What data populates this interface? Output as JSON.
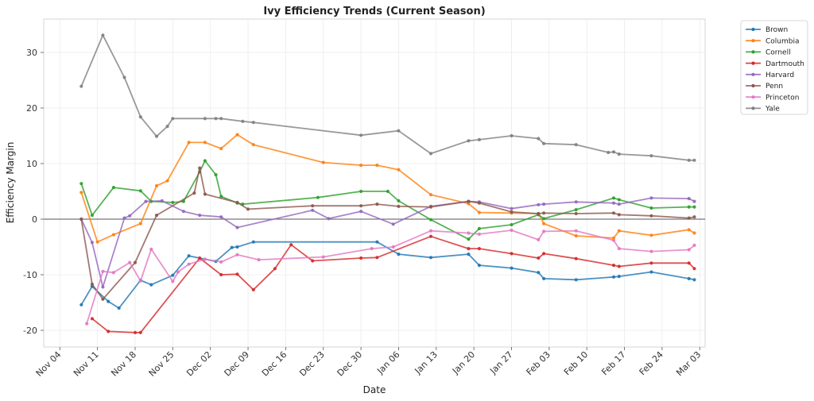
{
  "chart_data": {
    "type": "line",
    "title": "Ivy Efficiency Trends (Current Season)",
    "xlabel": "Date",
    "ylabel": "Efficiency Margin",
    "x_ticks": [
      "Nov 04",
      "Nov 11",
      "Nov 18",
      "Nov 25",
      "Dec 02",
      "Dec 09",
      "Dec 16",
      "Dec 23",
      "Dec 30",
      "Jan 06",
      "Jan 13",
      "Jan 20",
      "Jan 27",
      "Feb 03",
      "Feb 10",
      "Feb 17",
      "Feb 24",
      "Mar 03"
    ],
    "x_range": [
      "2024-11-01",
      "2025-03-04"
    ],
    "y_ticks": [
      -20,
      -10,
      0,
      10,
      20,
      30
    ],
    "ylim": [
      -23,
      36
    ],
    "grid": true,
    "zero_line": true,
    "legend_position": "outside top-right",
    "series": [
      {
        "name": "Brown",
        "color": "#1f77b4",
        "points": [
          [
            "2024-11-08",
            -15.4
          ],
          [
            "2024-11-10",
            -12.1
          ],
          [
            "2024-11-13",
            -14.8
          ],
          [
            "2024-11-15",
            -16.0
          ],
          [
            "2024-11-19",
            -11.0
          ],
          [
            "2024-11-21",
            -11.8
          ],
          [
            "2024-11-25",
            -10.1
          ],
          [
            "2024-11-28",
            -6.6
          ],
          [
            "2024-12-03",
            -7.6
          ],
          [
            "2024-12-06",
            -5.1
          ],
          [
            "2024-12-07",
            -5.0
          ],
          [
            "2024-12-10",
            -4.1
          ],
          [
            "2025-01-02",
            -4.1
          ],
          [
            "2025-01-06",
            -6.3
          ],
          [
            "2025-01-12",
            -6.9
          ],
          [
            "2025-01-19",
            -6.3
          ],
          [
            "2025-01-21",
            -8.3
          ],
          [
            "2025-01-27",
            -8.8
          ],
          [
            "2025-02-01",
            -9.6
          ],
          [
            "2025-02-02",
            -10.7
          ],
          [
            "2025-02-08",
            -10.9
          ],
          [
            "2025-02-15",
            -10.4
          ],
          [
            "2025-02-16",
            -10.3
          ],
          [
            "2025-02-22",
            -9.5
          ],
          [
            "2025-03-01",
            -10.7
          ],
          [
            "2025-03-02",
            -10.9
          ]
        ]
      },
      {
        "name": "Columbia",
        "color": "#ff7f0e",
        "points": [
          [
            "2024-11-08",
            4.8
          ],
          [
            "2024-11-11",
            -4.1
          ],
          [
            "2024-11-14",
            -2.8
          ],
          [
            "2024-11-19",
            -0.8
          ],
          [
            "2024-11-22",
            6.0
          ],
          [
            "2024-11-24",
            6.9
          ],
          [
            "2024-11-28",
            13.8
          ],
          [
            "2024-12-01",
            13.8
          ],
          [
            "2024-12-04",
            12.7
          ],
          [
            "2024-12-07",
            15.2
          ],
          [
            "2024-12-10",
            13.4
          ],
          [
            "2024-12-23",
            10.2
          ],
          [
            "2024-12-30",
            9.7
          ],
          [
            "2025-01-02",
            9.7
          ],
          [
            "2025-01-06",
            8.9
          ],
          [
            "2025-01-12",
            4.4
          ],
          [
            "2025-01-19",
            2.8
          ],
          [
            "2025-01-21",
            1.2
          ],
          [
            "2025-01-27",
            1.1
          ],
          [
            "2025-02-01",
            1.0
          ],
          [
            "2025-02-02",
            -0.8
          ],
          [
            "2025-02-08",
            -3.0
          ],
          [
            "2025-02-15",
            -3.4
          ],
          [
            "2025-02-16",
            -2.1
          ],
          [
            "2025-02-22",
            -2.9
          ],
          [
            "2025-03-01",
            -1.9
          ],
          [
            "2025-03-02",
            -2.5
          ]
        ]
      },
      {
        "name": "Cornell",
        "color": "#2ca02c",
        "points": [
          [
            "2024-11-08",
            6.4
          ],
          [
            "2024-11-10",
            0.7
          ],
          [
            "2024-11-14",
            5.7
          ],
          [
            "2024-11-19",
            5.1
          ],
          [
            "2024-11-21",
            3.2
          ],
          [
            "2024-11-25",
            3.0
          ],
          [
            "2024-11-27",
            3.2
          ],
          [
            "2024-11-30",
            8.5
          ],
          [
            "2024-12-01",
            10.5
          ],
          [
            "2024-12-03",
            8.0
          ],
          [
            "2024-12-04",
            4.1
          ],
          [
            "2024-12-07",
            2.9
          ],
          [
            "2024-12-08",
            2.7
          ],
          [
            "2024-12-22",
            3.9
          ],
          [
            "2024-12-30",
            5.0
          ],
          [
            "2025-01-04",
            5.0
          ],
          [
            "2025-01-06",
            3.3
          ],
          [
            "2025-01-12",
            -0.1
          ],
          [
            "2025-01-19",
            -3.6
          ],
          [
            "2025-01-21",
            -1.7
          ],
          [
            "2025-01-27",
            -1.0
          ],
          [
            "2025-02-01",
            0.8
          ],
          [
            "2025-02-02",
            0.1
          ],
          [
            "2025-02-08",
            1.7
          ],
          [
            "2025-02-15",
            3.8
          ],
          [
            "2025-02-16",
            3.5
          ],
          [
            "2025-02-22",
            2.0
          ],
          [
            "2025-03-01",
            2.2
          ],
          [
            "2025-03-02",
            2.2
          ]
        ]
      },
      {
        "name": "Dartmouth",
        "color": "#d62728",
        "points": [
          [
            "2024-11-10",
            -17.9
          ],
          [
            "2024-11-13",
            -20.2
          ],
          [
            "2024-11-18",
            -20.4
          ],
          [
            "2024-11-19",
            -20.4
          ],
          [
            "2024-11-30",
            -7.0
          ],
          [
            "2024-12-04",
            -10.0
          ],
          [
            "2024-12-07",
            -9.9
          ],
          [
            "2024-12-10",
            -12.7
          ],
          [
            "2024-12-14",
            -8.9
          ],
          [
            "2024-12-17",
            -4.6
          ],
          [
            "2024-12-21",
            -7.5
          ],
          [
            "2024-12-30",
            -7.0
          ],
          [
            "2025-01-02",
            -6.9
          ],
          [
            "2025-01-12",
            -3.1
          ],
          [
            "2025-01-19",
            -5.3
          ],
          [
            "2025-01-21",
            -5.3
          ],
          [
            "2025-01-27",
            -6.2
          ],
          [
            "2025-02-01",
            -7.0
          ],
          [
            "2025-02-02",
            -6.2
          ],
          [
            "2025-02-08",
            -7.1
          ],
          [
            "2025-02-15",
            -8.3
          ],
          [
            "2025-02-16",
            -8.5
          ],
          [
            "2025-02-22",
            -7.9
          ],
          [
            "2025-03-01",
            -7.9
          ],
          [
            "2025-03-02",
            -8.9
          ]
        ]
      },
      {
        "name": "Harvard",
        "color": "#9467bd",
        "points": [
          [
            "2024-11-08",
            0.0
          ],
          [
            "2024-11-10",
            -4.2
          ],
          [
            "2024-11-12",
            -12.2
          ],
          [
            "2024-11-16",
            0.2
          ],
          [
            "2024-11-17",
            0.6
          ],
          [
            "2024-11-20",
            3.2
          ],
          [
            "2024-11-23",
            3.3
          ],
          [
            "2024-11-27",
            1.4
          ],
          [
            "2024-11-30",
            0.7
          ],
          [
            "2024-12-04",
            0.4
          ],
          [
            "2024-12-07",
            -1.5
          ],
          [
            "2024-12-21",
            1.6
          ],
          [
            "2024-12-24",
            0.1
          ],
          [
            "2024-12-30",
            1.4
          ],
          [
            "2025-01-05",
            -0.9
          ],
          [
            "2025-01-12",
            2.3
          ],
          [
            "2025-01-19",
            3.2
          ],
          [
            "2025-01-21",
            3.1
          ],
          [
            "2025-01-27",
            1.9
          ],
          [
            "2025-02-01",
            2.6
          ],
          [
            "2025-02-02",
            2.7
          ],
          [
            "2025-02-08",
            3.1
          ],
          [
            "2025-02-15",
            2.9
          ],
          [
            "2025-02-16",
            2.7
          ],
          [
            "2025-02-22",
            3.8
          ],
          [
            "2025-03-01",
            3.7
          ],
          [
            "2025-03-02",
            3.2
          ]
        ]
      },
      {
        "name": "Penn",
        "color": "#8c564b",
        "points": [
          [
            "2024-11-08",
            0.0
          ],
          [
            "2024-11-10",
            -11.7
          ],
          [
            "2024-11-12",
            -14.4
          ],
          [
            "2024-11-18",
            -7.8
          ],
          [
            "2024-11-22",
            0.7
          ],
          [
            "2024-11-29",
            4.7
          ],
          [
            "2024-11-30",
            9.2
          ],
          [
            "2024-12-01",
            4.5
          ],
          [
            "2024-12-07",
            3.0
          ],
          [
            "2024-12-09",
            1.8
          ],
          [
            "2024-12-21",
            2.4
          ],
          [
            "2024-12-30",
            2.4
          ],
          [
            "2025-01-02",
            2.7
          ],
          [
            "2025-01-06",
            2.3
          ],
          [
            "2025-01-12",
            2.2
          ],
          [
            "2025-01-19",
            3.2
          ],
          [
            "2025-01-21",
            2.9
          ],
          [
            "2025-01-27",
            1.3
          ],
          [
            "2025-02-01",
            1.0
          ],
          [
            "2025-02-02",
            1.1
          ],
          [
            "2025-02-08",
            1.0
          ],
          [
            "2025-02-15",
            1.1
          ],
          [
            "2025-02-16",
            0.8
          ],
          [
            "2025-02-22",
            0.6
          ],
          [
            "2025-03-01",
            0.2
          ],
          [
            "2025-03-02",
            0.4
          ]
        ]
      },
      {
        "name": "Princeton",
        "color": "#e377c2",
        "points": [
          [
            "2024-11-09",
            -18.8
          ],
          [
            "2024-11-12",
            -9.4
          ],
          [
            "2024-11-14",
            -9.6
          ],
          [
            "2024-11-17",
            -7.8
          ],
          [
            "2024-11-19",
            -11.1
          ],
          [
            "2024-11-21",
            -5.4
          ],
          [
            "2024-11-25",
            -11.2
          ],
          [
            "2024-11-26",
            -9.5
          ],
          [
            "2024-11-28",
            -8.1
          ],
          [
            "2024-12-01",
            -7.2
          ],
          [
            "2024-12-04",
            -7.7
          ],
          [
            "2024-12-07",
            -6.4
          ],
          [
            "2024-12-11",
            -7.3
          ],
          [
            "2024-12-23",
            -6.8
          ],
          [
            "2025-01-01",
            -5.3
          ],
          [
            "2025-01-05",
            -5.0
          ],
          [
            "2025-01-12",
            -2.1
          ],
          [
            "2025-01-19",
            -2.5
          ],
          [
            "2025-01-21",
            -2.7
          ],
          [
            "2025-01-27",
            -2.0
          ],
          [
            "2025-02-01",
            -3.7
          ],
          [
            "2025-02-02",
            -2.2
          ],
          [
            "2025-02-08",
            -2.1
          ],
          [
            "2025-02-15",
            -3.8
          ],
          [
            "2025-02-16",
            -5.3
          ],
          [
            "2025-02-22",
            -5.8
          ],
          [
            "2025-03-01",
            -5.5
          ],
          [
            "2025-03-02",
            -4.7
          ]
        ]
      },
      {
        "name": "Yale",
        "color": "#7f7f7f",
        "points": [
          [
            "2024-11-08",
            23.9
          ],
          [
            "2024-11-12",
            33.1
          ],
          [
            "2024-11-16",
            25.5
          ],
          [
            "2024-11-19",
            18.4
          ],
          [
            "2024-11-22",
            14.9
          ],
          [
            "2024-11-24",
            16.7
          ],
          [
            "2024-11-25",
            18.1
          ],
          [
            "2024-12-01",
            18.1
          ],
          [
            "2024-12-03",
            18.1
          ],
          [
            "2024-12-04",
            18.1
          ],
          [
            "2024-12-08",
            17.6
          ],
          [
            "2024-12-10",
            17.4
          ],
          [
            "2024-12-30",
            15.1
          ],
          [
            "2025-01-06",
            15.9
          ],
          [
            "2025-01-12",
            11.8
          ],
          [
            "2025-01-19",
            14.1
          ],
          [
            "2025-01-21",
            14.3
          ],
          [
            "2025-01-27",
            15.0
          ],
          [
            "2025-02-01",
            14.5
          ],
          [
            "2025-02-02",
            13.6
          ],
          [
            "2025-02-08",
            13.4
          ],
          [
            "2025-02-14",
            12.0
          ],
          [
            "2025-02-15",
            12.1
          ],
          [
            "2025-02-16",
            11.7
          ],
          [
            "2025-02-22",
            11.4
          ],
          [
            "2025-03-01",
            10.6
          ],
          [
            "2025-03-02",
            10.6
          ]
        ]
      }
    ]
  }
}
